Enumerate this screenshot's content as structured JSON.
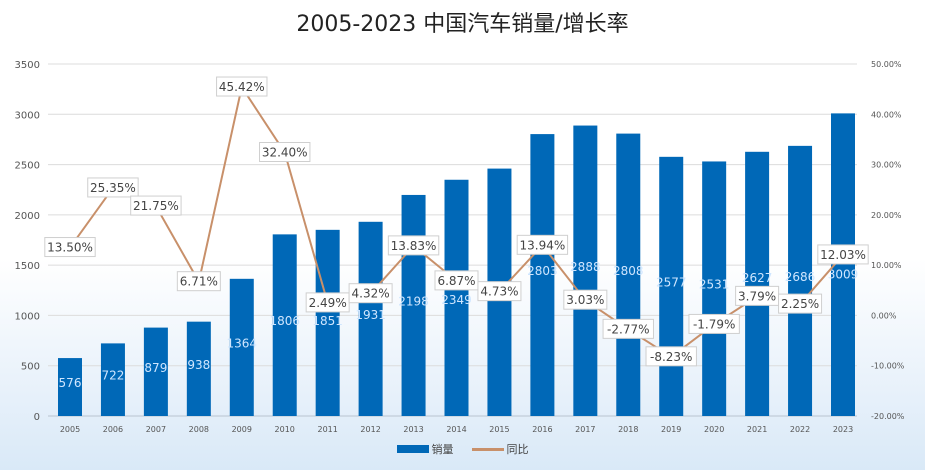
{
  "chart_data": {
    "type": "bar+line",
    "title": "2005-2023 中国汽车销量/增长率",
    "categories": [
      "2005",
      "2006",
      "2007",
      "2008",
      "2009",
      "2010",
      "2011",
      "2012",
      "2013",
      "2014",
      "2015",
      "2016",
      "2017",
      "2018",
      "2019",
      "2020",
      "2021",
      "2022",
      "2023"
    ],
    "series": [
      {
        "name": "销量",
        "type": "bar",
        "axis": "left",
        "color": "#0068b7",
        "values": [
          576,
          722,
          879,
          938,
          1364,
          1806,
          1851,
          1931,
          2198,
          2349,
          2460,
          2803,
          2888,
          2808,
          2577,
          2531,
          2627,
          2686,
          3009
        ],
        "labels": [
          "576",
          "722",
          "879",
          "938",
          "1364",
          "1806",
          "1851",
          "1931",
          "2198",
          "2349",
          "",
          "2803",
          "2888",
          "2808",
          "2577",
          "2531",
          "2627",
          "2686",
          "3009"
        ]
      },
      {
        "name": "同比",
        "type": "line",
        "axis": "right",
        "color": "#c8906a",
        "values": [
          13.5,
          25.35,
          21.75,
          6.71,
          45.42,
          32.4,
          2.49,
          4.32,
          13.83,
          6.87,
          4.73,
          13.94,
          3.03,
          -2.77,
          -8.23,
          -1.79,
          3.79,
          2.25,
          12.03
        ],
        "labels": [
          "13.50%",
          "25.35%",
          "21.75%",
          "6.71%",
          "45.42%",
          "32.40%",
          "2.49%",
          "4.32%",
          "13.83%",
          "6.87%",
          "4.73%",
          "13.94%",
          "3.03%",
          "-2.77%",
          "-8.23%",
          "-1.79%",
          "3.79%",
          "2.25%",
          "12.03%"
        ]
      }
    ],
    "left_axis": {
      "ylim": [
        0,
        3500
      ],
      "ticks": [
        "0",
        "500",
        "1000",
        "1500",
        "2000",
        "2500",
        "3000",
        "3500"
      ]
    },
    "right_axis": {
      "ylim": [
        -20,
        50
      ],
      "ticks": [
        "-20.00%",
        "-10.00%",
        "0.00%",
        "10.00%",
        "20.00%",
        "30.00%",
        "40.00%",
        "50.00%"
      ]
    },
    "grid": true,
    "legend": "bottom"
  }
}
